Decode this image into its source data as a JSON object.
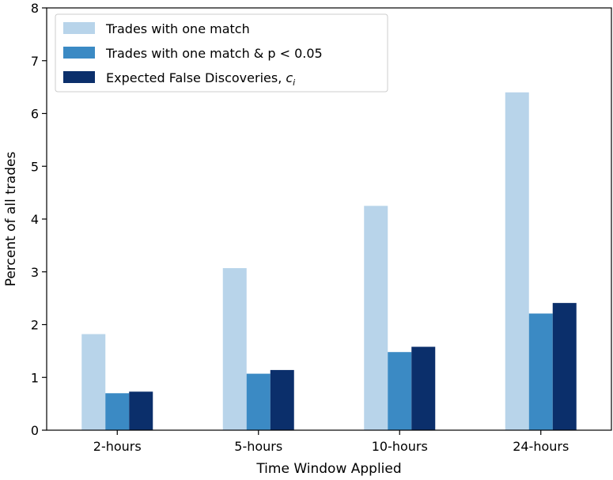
{
  "chart_data": {
    "type": "bar",
    "title": "",
    "xlabel": "Time Window Applied",
    "ylabel": "Percent of all trades",
    "ylim": [
      0,
      8
    ],
    "yticks": [
      0,
      1,
      2,
      3,
      4,
      5,
      6,
      7,
      8
    ],
    "categories": [
      "2-hours",
      "5-hours",
      "10-hours",
      "24-hours"
    ],
    "series": [
      {
        "name": "Trades with one match",
        "color": "#b8d4ea",
        "values": [
          1.82,
          3.07,
          4.25,
          6.4
        ]
      },
      {
        "name": "Trades with one match & p < 0.05",
        "color": "#3b8ac4",
        "values": [
          0.7,
          1.07,
          1.48,
          2.21
        ]
      },
      {
        "name": "Expected False Discoveries, ",
        "name_math": "c",
        "name_sub": "i",
        "color": "#0b2f6b",
        "values": [
          0.73,
          1.14,
          1.58,
          2.41
        ]
      }
    ],
    "legend": "top-left",
    "grid": false
  }
}
